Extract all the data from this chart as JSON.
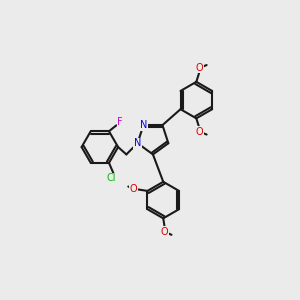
{
  "background_color": "#ebebeb",
  "bond_color": "#1a1a1a",
  "atom_colors": {
    "N": "#0000ee",
    "O": "#dd0000",
    "Cl": "#00bb00",
    "F": "#cc00cc"
  },
  "lw": 1.5,
  "r_hex": 0.62,
  "r_pyr": 0.55
}
